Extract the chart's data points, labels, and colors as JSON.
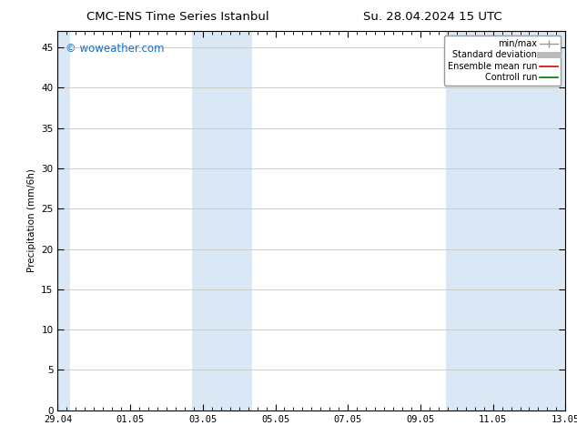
{
  "title_left": "CMC-ENS Time Series Istanbul",
  "title_right": "Su. 28.04.2024 15 UTC",
  "ylabel": "Precipitation (mm/6h)",
  "watermark": "© woweather.com",
  "watermark_color": "#1a6fbf",
  "ylim": [
    0,
    47
  ],
  "yticks": [
    0,
    5,
    10,
    15,
    20,
    25,
    30,
    35,
    40,
    45
  ],
  "xtick_labels": [
    "29.04",
    "01.05",
    "03.05",
    "05.05",
    "07.05",
    "09.05",
    "11.05",
    "13.05"
  ],
  "background_color": "#ffffff",
  "plot_bg_color": "#ffffff",
  "shaded_regions": [
    {
      "x_start": 0.0,
      "x_end": 0.35,
      "color": "#dae8f5"
    },
    {
      "x_start": 3.7,
      "x_end": 5.35,
      "color": "#dae8f5"
    },
    {
      "x_start": 10.7,
      "x_end": 14.0,
      "color": "#dae8f5"
    }
  ],
  "legend_items": [
    {
      "label": "min/max",
      "color": "#999999",
      "lw": 1.0
    },
    {
      "label": "Standard deviation",
      "color": "#bbbbbb",
      "lw": 5
    },
    {
      "label": "Ensemble mean run",
      "color": "#dd0000",
      "lw": 1.2
    },
    {
      "label": "Controll run",
      "color": "#007700",
      "lw": 1.2
    }
  ],
  "grid_color": "#cccccc",
  "tick_color": "#000000",
  "spine_color": "#000000",
  "x_num_start": 0,
  "x_num_end": 14,
  "x_tick_positions": [
    0,
    2,
    4,
    6,
    8,
    10,
    12,
    14
  ]
}
